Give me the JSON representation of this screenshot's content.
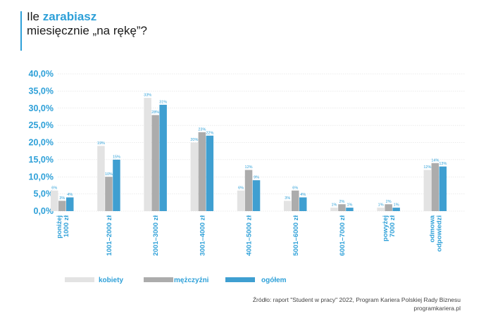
{
  "title": {
    "line1_prefix": "Ile ",
    "line1_highlight": "zarabiasz",
    "line2": "miesięcznie „na rękę”?"
  },
  "source": {
    "line1": "Źródło: raport \"Student w pracy\" 2022, Program Kariera Polskiej Rady Biznesu",
    "line2": "programkariera.pl"
  },
  "colors": {
    "accent": "#2ea0d8",
    "kobiety": "#e3e3e3",
    "mezczyzni": "#acacac",
    "ogolem": "#3f9fd1",
    "grid": "#d7d7d7"
  },
  "chart_data": {
    "type": "bar",
    "title": "",
    "xlabel": "",
    "ylabel": "",
    "ylim": [
      0,
      40
    ],
    "yticks": [
      "0,0%",
      "5,0%",
      "10,0%",
      "15,0%",
      "20,0%",
      "25,0%",
      "30,0%",
      "35,0%",
      "40,0%"
    ],
    "grid": true,
    "legend": "bottom",
    "categories": [
      [
        "poniżej",
        "1000 zł"
      ],
      [
        "1001–2000 zł"
      ],
      [
        "2001–3000 zł"
      ],
      [
        "3001–4000 zł"
      ],
      [
        "4001–5000 zł"
      ],
      [
        "5001–6000 zł"
      ],
      [
        "6001–7000 zł"
      ],
      [
        "powyżej",
        "7000 zł"
      ],
      [
        "odmowa",
        "odpowiedzi"
      ]
    ],
    "series": [
      {
        "name": "kobiety",
        "values": [
          6,
          19,
          33,
          20,
          6,
          3,
          1,
          1,
          12
        ],
        "labels": [
          "6%",
          "19%",
          "33%",
          "20%",
          "6%",
          "3%",
          "1%",
          "1%",
          "12%"
        ]
      },
      {
        "name": "mężczyźni",
        "values": [
          3,
          10,
          28,
          23,
          12,
          6,
          2,
          2,
          14
        ],
        "labels": [
          "3%",
          "10%",
          "28%",
          "23%",
          "12%",
          "6%",
          "2%",
          "2%",
          "14%"
        ]
      },
      {
        "name": "ogółem",
        "values": [
          4,
          15,
          31,
          22,
          9,
          4,
          1,
          1,
          13
        ],
        "labels": [
          "4%",
          "15%",
          "31%",
          "22%",
          "9%",
          "4%",
          "1%",
          "1%",
          "13%"
        ]
      }
    ]
  }
}
